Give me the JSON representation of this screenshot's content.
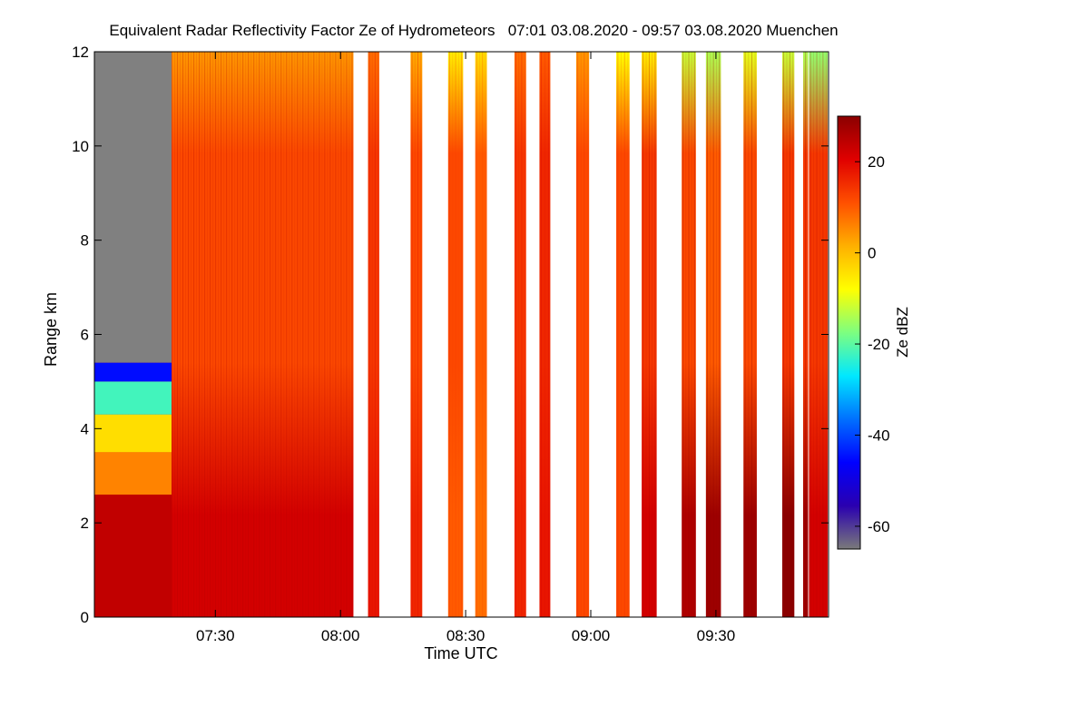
{
  "chart_data": {
    "type": "heatmap",
    "title": "Equivalent Radar Reflectivity Factor Ze of Hydrometeors   07:01 03.08.2020 - 09:57 03.08.2020 Muenchen",
    "xlabel": "Time UTC",
    "ylabel": "Range km",
    "xlim_minutes": [
      421,
      597
    ],
    "ylim": [
      0,
      12
    ],
    "x_ticks": [
      {
        "label": "07:30",
        "minutes": 450
      },
      {
        "label": "08:00",
        "minutes": 480
      },
      {
        "label": "08:30",
        "minutes": 510
      },
      {
        "label": "09:00",
        "minutes": 540
      },
      {
        "label": "09:30",
        "minutes": 570
      }
    ],
    "y_ticks": [
      {
        "label": "0",
        "value": 0
      },
      {
        "label": "2",
        "value": 2
      },
      {
        "label": "4",
        "value": 4
      },
      {
        "label": "6",
        "value": 6
      },
      {
        "label": "8",
        "value": 8
      },
      {
        "label": "10",
        "value": 10
      },
      {
        "label": "12",
        "value": 12
      }
    ],
    "colorbar": {
      "label": "Ze dBZ",
      "range": [
        -65,
        30
      ],
      "ticks": [
        {
          "label": "20",
          "value": 20
        },
        {
          "label": "0",
          "value": 0
        },
        {
          "label": "-20",
          "value": -20
        },
        {
          "label": "-40",
          "value": -40
        },
        {
          "label": "-60",
          "value": -60
        }
      ],
      "colors": [
        "#7a7a7a",
        "#2a00b0",
        "#0000ff",
        "#0070ff",
        "#00e8ff",
        "#7dff80",
        "#ffff00",
        "#ffb000",
        "#ff5000",
        "#e00000",
        "#8b0000"
      ]
    },
    "no_data_color": "#808080",
    "segments": [
      {
        "start": 421.0,
        "end": 483.1,
        "top_km": 12.0,
        "bottom_dbz": 22,
        "mid_dbz": 12,
        "top_dbz": 4
      },
      {
        "start": 486.6,
        "end": 489.3,
        "top_km": 12.0,
        "bottom_dbz": 18,
        "mid_dbz": 14,
        "top_dbz": 8
      },
      {
        "start": 496.8,
        "end": 499.6,
        "top_km": 12.0,
        "bottom_dbz": 16,
        "mid_dbz": 12,
        "top_dbz": 2
      },
      {
        "start": 505.8,
        "end": 509.4,
        "top_km": 12.0,
        "bottom_dbz": 10,
        "mid_dbz": 12,
        "top_dbz": -6
      },
      {
        "start": 512.3,
        "end": 515.1,
        "top_km": 12.0,
        "bottom_dbz": 8,
        "mid_dbz": 10,
        "top_dbz": -4
      },
      {
        "start": 521.7,
        "end": 524.5,
        "top_km": 12.0,
        "bottom_dbz": 16,
        "mid_dbz": 14,
        "top_dbz": 8
      },
      {
        "start": 527.7,
        "end": 530.3,
        "top_km": 12.0,
        "bottom_dbz": 18,
        "mid_dbz": 16,
        "top_dbz": 10
      },
      {
        "start": 536.5,
        "end": 539.6,
        "top_km": 12.0,
        "bottom_dbz": 12,
        "mid_dbz": 12,
        "top_dbz": 4
      },
      {
        "start": 546.1,
        "end": 549.3,
        "top_km": 12.0,
        "bottom_dbz": 12,
        "mid_dbz": 12,
        "top_dbz": -8
      },
      {
        "start": 552.2,
        "end": 555.8,
        "top_km": 12.0,
        "bottom_dbz": 22,
        "mid_dbz": 14,
        "top_dbz": -6
      },
      {
        "start": 561.8,
        "end": 565.2,
        "top_km": 12.0,
        "bottom_dbz": 26,
        "mid_dbz": 12,
        "top_dbz": -12
      },
      {
        "start": 567.6,
        "end": 571.2,
        "top_km": 12.0,
        "bottom_dbz": 28,
        "mid_dbz": 10,
        "top_dbz": -14
      },
      {
        "start": 576.6,
        "end": 579.8,
        "top_km": 12.0,
        "bottom_dbz": 28,
        "mid_dbz": 12,
        "top_dbz": -10
      },
      {
        "start": 585.9,
        "end": 588.8,
        "top_km": 12.0,
        "bottom_dbz": 30,
        "mid_dbz": 14,
        "top_dbz": -12
      },
      {
        "start": 590.9,
        "end": 592.1,
        "top_km": 12.0,
        "bottom_dbz": 28,
        "mid_dbz": 14,
        "top_dbz": -14
      },
      {
        "start": 592.3,
        "end": 596.8,
        "top_km": 12.0,
        "bottom_dbz": 22,
        "mid_dbz": 14,
        "top_dbz": -16
      }
    ],
    "early_cloud": {
      "start": 421.0,
      "end": 439.5,
      "cloud_top_km": 5.4,
      "regions": [
        {
          "from_km": 0.0,
          "to_km": 2.6,
          "dbz": 24
        },
        {
          "from_km": 2.6,
          "to_km": 3.5,
          "dbz": 6
        },
        {
          "from_km": 3.5,
          "to_km": 4.3,
          "dbz": -4
        },
        {
          "from_km": 4.3,
          "to_km": 5.0,
          "dbz": -22
        },
        {
          "from_km": 5.0,
          "to_km": 5.4,
          "dbz": -45
        }
      ]
    }
  }
}
